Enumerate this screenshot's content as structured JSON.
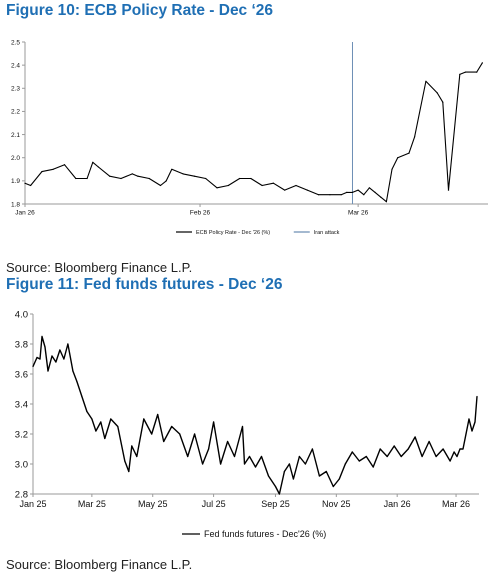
{
  "figure10": {
    "title": "Figure 10: ECB Policy Rate - Dec ‘26",
    "source": "Source: Bloomberg Finance L.P."
  },
  "figure11": {
    "title": "Figure 11: Fed funds futures - Dec ‘26",
    "source": "Source: Bloomberg Finance L.P."
  },
  "colors": {
    "title": "#1f6fb4",
    "line": "#000000",
    "event": "#6d8fb5",
    "axis": "#9a9a9a"
  },
  "chart_data": [
    {
      "type": "line",
      "title": "",
      "xlabel": "",
      "ylabel": "",
      "ylim": [
        1.8,
        2.5
      ],
      "yticks": [
        1.8,
        1.9,
        2.0,
        2.1,
        2.2,
        2.3,
        2.4,
        2.5
      ],
      "ytick_labels": [
        "1.8",
        "1.9",
        "2.0",
        "2.1",
        "2.2",
        "2.3",
        "2.4",
        "2.5"
      ],
      "xlim": [
        "2026-01-01",
        "2026-03-24"
      ],
      "xticks": [
        "2026-01-01",
        "2026-02-01",
        "2026-03-01"
      ],
      "xtick_labels": [
        "Jan 26",
        "Feb 26",
        "Mar 26"
      ],
      "grid": false,
      "legend_position": "bottom",
      "series": [
        {
          "name": "ECB Policy Rate - Dec '26 (%)",
          "x": [
            "2026-01-01",
            "2026-01-02",
            "2026-01-04",
            "2026-01-06",
            "2026-01-08",
            "2026-01-10",
            "2026-01-12",
            "2026-01-13",
            "2026-01-14",
            "2026-01-16",
            "2026-01-18",
            "2026-01-20",
            "2026-01-21",
            "2026-01-23",
            "2026-01-25",
            "2026-01-26",
            "2026-01-27",
            "2026-01-29",
            "2026-01-31",
            "2026-02-02",
            "2026-02-04",
            "2026-02-06",
            "2026-02-08",
            "2026-02-10",
            "2026-02-12",
            "2026-02-14",
            "2026-02-16",
            "2026-02-18",
            "2026-02-20",
            "2026-02-22",
            "2026-02-24",
            "2026-02-26",
            "2026-02-27",
            "2026-02-28",
            "2026-03-01",
            "2026-03-02",
            "2026-03-03",
            "2026-03-04",
            "2026-03-05",
            "2026-03-06",
            "2026-03-07",
            "2026-03-08",
            "2026-03-10",
            "2026-03-11",
            "2026-03-13",
            "2026-03-15",
            "2026-03-16",
            "2026-03-17",
            "2026-03-19",
            "2026-03-20",
            "2026-03-22",
            "2026-03-23"
          ],
          "values": [
            1.89,
            1.88,
            1.94,
            1.95,
            1.97,
            1.91,
            1.91,
            1.98,
            1.96,
            1.92,
            1.91,
            1.93,
            1.92,
            1.91,
            1.88,
            1.9,
            1.95,
            1.93,
            1.92,
            1.91,
            1.87,
            1.88,
            1.91,
            1.91,
            1.88,
            1.89,
            1.86,
            1.88,
            1.86,
            1.84,
            1.84,
            1.84,
            1.85,
            1.85,
            1.86,
            1.84,
            1.87,
            1.85,
            1.83,
            1.81,
            1.95,
            2.0,
            2.02,
            2.09,
            2.33,
            2.28,
            2.24,
            1.86,
            2.36,
            2.37,
            2.37,
            2.41
          ]
        },
        {
          "name": "Iran attack",
          "type": "event-line",
          "x": [
            "2026-02-28"
          ]
        }
      ]
    },
    {
      "type": "line",
      "title": "",
      "xlabel": "",
      "ylabel": "",
      "ylim": [
        2.8,
        4.0
      ],
      "yticks": [
        2.8,
        3.0,
        3.2,
        3.4,
        3.6,
        3.8,
        4.0
      ],
      "ytick_labels": [
        "2.8",
        "3.0",
        "3.2",
        "3.4",
        "3.6",
        "3.8",
        "4.0"
      ],
      "xlim": [
        "2025-01-01",
        "2026-03-24"
      ],
      "xticks": [
        "2025-01-01",
        "2025-03-01",
        "2025-05-01",
        "2025-07-01",
        "2025-09-01",
        "2025-11-01",
        "2026-01-01",
        "2026-03-01"
      ],
      "xtick_labels": [
        "Jan 25",
        "Mar 25",
        "May 25",
        "Jul 25",
        "Sep 25",
        "Nov 25",
        "Jan 26",
        "Mar 26"
      ],
      "grid": false,
      "legend_position": "bottom",
      "series": [
        {
          "name": "Fed funds futures - Dec'26 (%)",
          "x": [
            "2025-01-01",
            "2025-01-05",
            "2025-01-08",
            "2025-01-10",
            "2025-01-13",
            "2025-01-16",
            "2025-01-20",
            "2025-01-24",
            "2025-01-28",
            "2025-02-01",
            "2025-02-05",
            "2025-02-10",
            "2025-02-14",
            "2025-02-19",
            "2025-02-24",
            "2025-03-01",
            "2025-03-05",
            "2025-03-10",
            "2025-03-14",
            "2025-03-20",
            "2025-03-27",
            "2025-04-03",
            "2025-04-07",
            "2025-04-10",
            "2025-04-15",
            "2025-04-22",
            "2025-04-30",
            "2025-05-06",
            "2025-05-12",
            "2025-05-20",
            "2025-05-28",
            "2025-06-05",
            "2025-06-12",
            "2025-06-20",
            "2025-06-26",
            "2025-07-01",
            "2025-07-08",
            "2025-07-15",
            "2025-07-22",
            "2025-07-30",
            "2025-08-01",
            "2025-08-06",
            "2025-08-12",
            "2025-08-18",
            "2025-08-25",
            "2025-09-01",
            "2025-09-05",
            "2025-09-10",
            "2025-09-15",
            "2025-09-19",
            "2025-09-25",
            "2025-10-01",
            "2025-10-08",
            "2025-10-15",
            "2025-10-22",
            "2025-10-29",
            "2025-11-04",
            "2025-11-10",
            "2025-11-17",
            "2025-11-24",
            "2025-12-01",
            "2025-12-08",
            "2025-12-15",
            "2025-12-22",
            "2025-12-29",
            "2026-01-05",
            "2026-01-12",
            "2026-01-19",
            "2026-01-26",
            "2026-02-02",
            "2026-02-09",
            "2026-02-16",
            "2026-02-23",
            "2026-02-27",
            "2026-03-02",
            "2026-03-05",
            "2026-03-08",
            "2026-03-11",
            "2026-03-14",
            "2026-03-17",
            "2026-03-20",
            "2026-03-22"
          ],
          "values": [
            3.65,
            3.71,
            3.7,
            3.85,
            3.78,
            3.62,
            3.72,
            3.68,
            3.76,
            3.7,
            3.8,
            3.62,
            3.55,
            3.45,
            3.35,
            3.3,
            3.22,
            3.28,
            3.17,
            3.3,
            3.25,
            3.02,
            2.95,
            3.12,
            3.05,
            3.3,
            3.2,
            3.33,
            3.15,
            3.25,
            3.2,
            3.05,
            3.2,
            3.0,
            3.1,
            3.28,
            3.0,
            3.15,
            3.05,
            3.25,
            3.0,
            3.05,
            2.98,
            3.05,
            2.92,
            2.85,
            2.8,
            2.95,
            3.0,
            2.9,
            3.05,
            3.0,
            3.1,
            2.92,
            2.95,
            2.85,
            2.9,
            3.0,
            3.08,
            3.02,
            3.05,
            2.98,
            3.1,
            3.05,
            3.12,
            3.05,
            3.1,
            3.18,
            3.05,
            3.15,
            3.05,
            3.1,
            3.02,
            3.08,
            3.05,
            3.1,
            3.1,
            3.2,
            3.3,
            3.22,
            3.28,
            3.45
          ]
        }
      ]
    }
  ]
}
